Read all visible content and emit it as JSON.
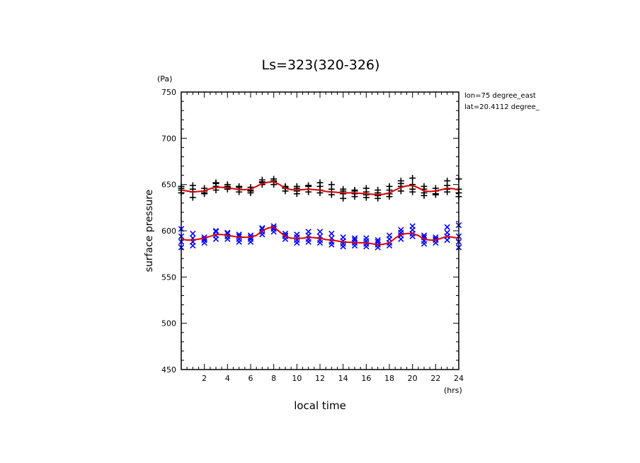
{
  "chart_data": {
    "type": "scatter",
    "title": "Ls=323(320-326)",
    "xlabel": "local time",
    "ylabel": "surface pressure",
    "xunit": "(hrs)",
    "yunit": "(Pa)",
    "annotations": [
      "lon=75 degree_east",
      "lat=20.4112 degree_"
    ],
    "xlim": [
      0,
      24
    ],
    "ylim": [
      450,
      750
    ],
    "xticks": [
      2,
      4,
      6,
      8,
      10,
      12,
      14,
      16,
      18,
      20,
      22,
      24
    ],
    "yticks": [
      450,
      500,
      550,
      600,
      650,
      700,
      750
    ],
    "grid": false,
    "colors": {
      "upper_markers": "#000000",
      "lower_markers": "#0000ff",
      "fit_line": "#dd0000"
    },
    "series": [
      {
        "marker": "plus",
        "x": [
          0,
          0,
          0,
          0,
          1,
          1,
          1,
          1,
          2,
          2,
          2,
          2,
          3,
          3,
          3,
          3,
          4,
          4,
          4,
          4,
          5,
          5,
          5,
          5,
          6,
          6,
          6,
          6,
          7,
          7,
          7,
          7,
          8,
          8,
          8,
          8,
          9,
          9,
          9,
          9,
          10,
          10,
          10,
          10,
          11,
          11,
          11,
          11,
          12,
          12,
          12,
          12,
          13,
          13,
          13,
          13,
          14,
          14,
          14,
          14,
          15,
          15,
          15,
          15,
          16,
          16,
          16,
          16,
          17,
          17,
          17,
          17,
          18,
          18,
          18,
          18,
          19,
          19,
          19,
          19,
          20,
          20,
          20,
          20,
          21,
          21,
          21,
          21,
          22,
          22,
          22,
          22,
          23,
          23,
          23,
          23,
          24,
          24,
          24,
          24
        ],
        "y": [
          641,
          644,
          646,
          648,
          636,
          642,
          645,
          649,
          640,
          643,
          646,
          641,
          644,
          648,
          651,
          652,
          645,
          648,
          650,
          647,
          642,
          645,
          648,
          647,
          641,
          644,
          647,
          643,
          650,
          652,
          655,
          653,
          650,
          653,
          656,
          654,
          643,
          646,
          648,
          647,
          640,
          643,
          646,
          648,
          642,
          645,
          648,
          649,
          641,
          644,
          648,
          652,
          639,
          642,
          645,
          650,
          635,
          640,
          643,
          645,
          637,
          640,
          643,
          644,
          636,
          639,
          642,
          646,
          635,
          638,
          641,
          644,
          637,
          640,
          644,
          648,
          643,
          648,
          651,
          654,
          642,
          645,
          650,
          657,
          638,
          641,
          645,
          648,
          639,
          643,
          646,
          640,
          642,
          645,
          649,
          654,
          637,
          641,
          645,
          656
        ]
      },
      {
        "marker": "x",
        "x": [
          0,
          0,
          0,
          0,
          1,
          1,
          1,
          1,
          2,
          2,
          2,
          2,
          3,
          3,
          3,
          3,
          4,
          4,
          4,
          4,
          5,
          5,
          5,
          5,
          6,
          6,
          6,
          6,
          7,
          7,
          7,
          7,
          8,
          8,
          8,
          8,
          9,
          9,
          9,
          9,
          10,
          10,
          10,
          10,
          11,
          11,
          11,
          11,
          12,
          12,
          12,
          12,
          13,
          13,
          13,
          13,
          14,
          14,
          14,
          14,
          15,
          15,
          15,
          15,
          16,
          16,
          16,
          16,
          17,
          17,
          17,
          17,
          18,
          18,
          18,
          18,
          19,
          19,
          19,
          19,
          20,
          20,
          20,
          20,
          21,
          21,
          21,
          21,
          22,
          22,
          22,
          22,
          23,
          23,
          23,
          23,
          24,
          24,
          24,
          24
        ],
        "y": [
          582,
          588,
          594,
          602,
          584,
          588,
          592,
          597,
          587,
          590,
          593,
          591,
          591,
          595,
          599,
          600,
          591,
          594,
          598,
          597,
          588,
          591,
          594,
          596,
          588,
          591,
          593,
          595,
          596,
          599,
          602,
          603,
          599,
          602,
          605,
          603,
          591,
          594,
          597,
          595,
          587,
          590,
          593,
          596,
          588,
          591,
          595,
          599,
          587,
          590,
          594,
          599,
          585,
          588,
          592,
          597,
          583,
          586,
          589,
          593,
          584,
          587,
          590,
          592,
          583,
          586,
          589,
          592,
          582,
          585,
          588,
          590,
          584,
          587,
          591,
          595,
          591,
          595,
          598,
          601,
          594,
          597,
          601,
          605,
          586,
          589,
          593,
          595,
          587,
          590,
          593,
          591,
          590,
          594,
          598,
          604,
          582,
          588,
          594,
          606
        ]
      },
      {
        "type": "line",
        "x": [
          0,
          0.5,
          1,
          1.5,
          2,
          2.5,
          3,
          3.5,
          4,
          4.5,
          5,
          5.5,
          6,
          6.5,
          7,
          7.5,
          8,
          8.5,
          9,
          9.5,
          10,
          10.5,
          11,
          11.5,
          12,
          12.5,
          13,
          13.5,
          14,
          14.5,
          15,
          15.5,
          16,
          16.5,
          17,
          17.5,
          18,
          18.5,
          19,
          19.5,
          20,
          20.5,
          21,
          21.5,
          22,
          22.5,
          23,
          23.5,
          24
        ],
        "y": [
          644,
          643,
          642,
          642.5,
          643,
          645.5,
          647,
          647,
          646.5,
          645.5,
          644.5,
          644.5,
          645,
          648,
          651,
          652.5,
          653,
          650,
          646,
          644.5,
          644,
          644.5,
          645,
          644.5,
          644,
          642.5,
          642,
          641.5,
          641,
          641,
          641,
          640.5,
          640,
          639.5,
          639,
          639.5,
          641,
          644,
          647,
          648.5,
          649,
          646.5,
          643,
          642.5,
          643,
          644.5,
          646,
          645.5,
          644
        ]
      },
      {
        "type": "line",
        "x": [
          0,
          0.5,
          1,
          1.5,
          2,
          2.5,
          3,
          3.5,
          4,
          4.5,
          5,
          5.5,
          6,
          6.5,
          7,
          7.5,
          8,
          8.5,
          9,
          9.5,
          10,
          10.5,
          11,
          11.5,
          12,
          12.5,
          13,
          13.5,
          14,
          14.5,
          15,
          15.5,
          16,
          16.5,
          17,
          17.5,
          18,
          18.5,
          19,
          19.5,
          20,
          20.5,
          21,
          21.5,
          22,
          22.5,
          23,
          23.5,
          24
        ],
        "y": [
          591,
          590,
          590,
          591,
          592,
          594,
          596,
          596,
          595,
          594,
          593,
          593,
          593,
          595,
          600,
          603,
          604,
          599,
          594,
          592,
          592,
          592,
          593,
          592.5,
          592,
          590.5,
          590,
          589,
          588,
          587.5,
          587.5,
          587,
          587,
          586,
          585,
          585.5,
          587,
          592,
          596,
          597,
          597,
          595,
          591,
          590,
          590,
          592,
          594,
          593,
          592
        ]
      }
    ]
  }
}
